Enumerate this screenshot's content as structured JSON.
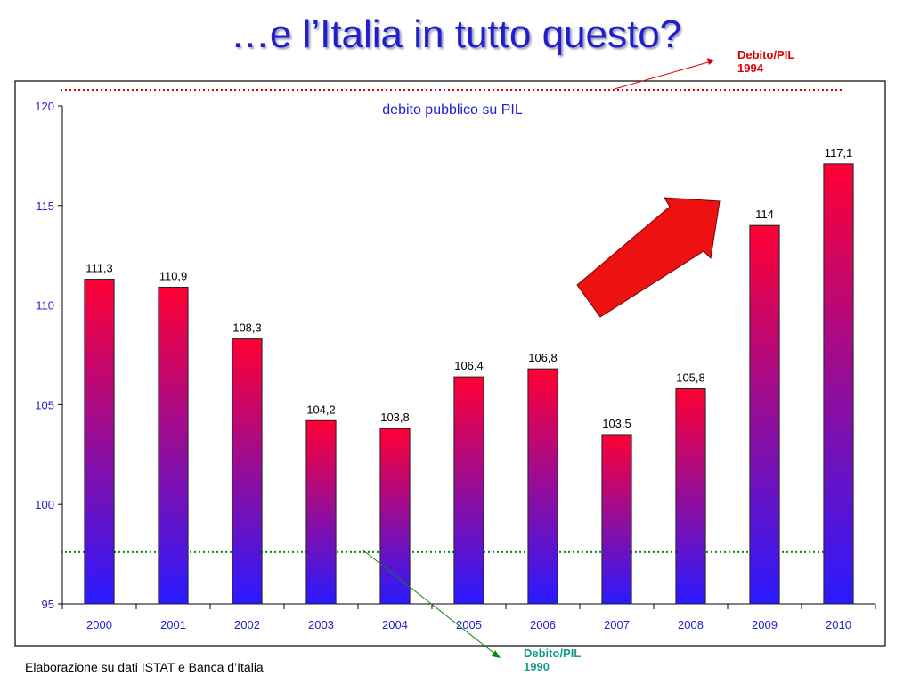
{
  "slide": {
    "title": "…e l’Italia in tutto questo?",
    "source": "Elaborazione su dati ISTAT e Banca d’Italia"
  },
  "annotations": {
    "top_line": {
      "label_line1": "Debito/PIL",
      "label_line2": "1994",
      "value": 121.5,
      "color": "#dd0000"
    },
    "bottom_line": {
      "label_line1": "Debito/PIL",
      "label_line2": "1990",
      "value": 97.6,
      "color": "#1a9a8a"
    }
  },
  "chart_data": {
    "type": "bar",
    "title": "debito pubblico su PIL",
    "xlabel": "",
    "ylabel": "",
    "categories": [
      "2000",
      "2001",
      "2002",
      "2003",
      "2004",
      "2005",
      "2006",
      "2007",
      "2008",
      "2009",
      "2010"
    ],
    "value_labels": [
      "111,3",
      "110,9",
      "108,3",
      "104,2",
      "103,8",
      "106,4",
      "106,8",
      "103,5",
      "105,8",
      "114",
      "117,1"
    ],
    "values": [
      111.3,
      110.9,
      108.3,
      104.2,
      103.8,
      106.4,
      106.8,
      103.5,
      105.8,
      114,
      117.1
    ],
    "ylim": [
      95,
      120
    ],
    "yticks": [
      95,
      100,
      105,
      110,
      115,
      120
    ],
    "grid": false,
    "legend": "none",
    "colors": {
      "bar_top": "#ff0033",
      "bar_bottom": "#2a1aff",
      "axis_text": "#2222cc",
      "title": "#1f1fd0",
      "arrow": "#ee1111"
    }
  }
}
